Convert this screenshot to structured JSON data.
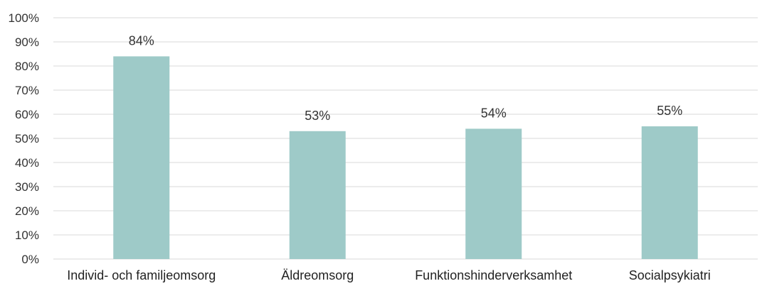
{
  "chart_data": {
    "type": "bar",
    "categories": [
      "Individ- och familjeomsorg",
      "Äldreomsorg",
      "Funktionshinderverksamhet",
      "Socialpsykiatri"
    ],
    "values": [
      84,
      53,
      54,
      55
    ],
    "data_labels": [
      "84%",
      "53%",
      "54%",
      "55%"
    ],
    "yticks": [
      "0%",
      "10%",
      "20%",
      "30%",
      "40%",
      "50%",
      "60%",
      "70%",
      "80%",
      "90%",
      "100%"
    ],
    "ylim": [
      0,
      100
    ],
    "title": "",
    "xlabel": "",
    "ylabel": "",
    "grid": true,
    "legend": "none",
    "bar_color": "#9ecac8",
    "grid_color": "#d9d9d9"
  }
}
